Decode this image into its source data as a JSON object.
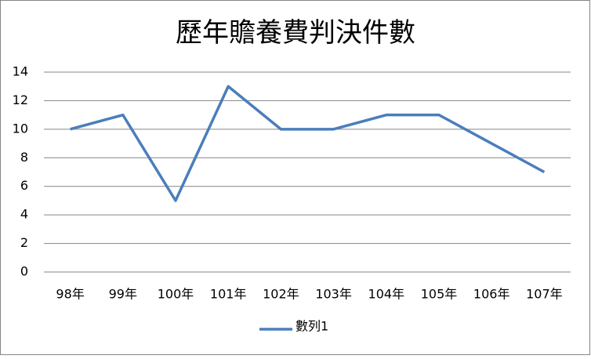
{
  "chart_data": {
    "type": "line",
    "title": "歷年贍養費判決件數",
    "categories": [
      "98年",
      "99年",
      "100年",
      "101年",
      "102年",
      "103年",
      "104年",
      "105年",
      "106年",
      "107年"
    ],
    "series": [
      {
        "name": "數列1",
        "color": "#4a7ebb",
        "values": [
          10,
          11,
          5,
          13,
          10,
          10,
          11,
          11,
          9,
          7
        ]
      }
    ],
    "ylim": [
      0,
      14
    ],
    "yticks": [
      0,
      2,
      4,
      6,
      8,
      10,
      12,
      14
    ],
    "grid": true,
    "legend": "bottom"
  }
}
